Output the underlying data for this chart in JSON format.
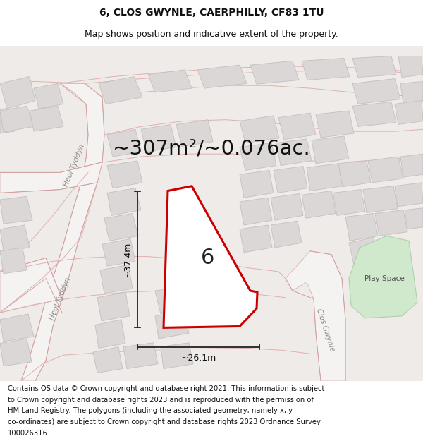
{
  "title_line1": "6, CLOS GWYNLE, CAERPHILLY, CF83 1TU",
  "title_line2": "Map shows position and indicative extent of the property.",
  "area_text": "~307m²/~0.076ac.",
  "width_label": "~26.1m",
  "height_label": "~37.4m",
  "plot_number": "6",
  "play_space_label": "Play Space",
  "street_label_1": "Heol Tyddyn",
  "street_label_2": "Heol Tyddyn",
  "street_label_3": "Clos Gwynle",
  "footer_text": "Contains OS data © Crown copyright and database right 2021. This information is subject to Crown copyright and database rights 2023 and is reproduced with the permission of HM Land Registry. The polygons (including the associated geometry, namely x, y co-ordinates) are subject to Crown copyright and database rights 2023 Ordnance Survey 100026316.",
  "bg_color": "#f2f0f0",
  "map_bg_color": "#f0eeee",
  "building_color": "#dbd7d7",
  "building_edge_color": "#c8c4c4",
  "road_color": "#e8b8b8",
  "road_fill": "#f5f2f2",
  "highlight_fill": "#ffffff",
  "highlight_edge": "#cc0000",
  "dim_color": "#222222",
  "play_color": "#d0e8cc",
  "play_edge": "#b0d0ac",
  "street_color": "#aaaaaa",
  "title_fontsize": 10,
  "subtitle_fontsize": 9,
  "area_fontsize": 21,
  "label_fontsize": 9,
  "footer_fontsize": 7.2,
  "street_fontsize": 7.5
}
